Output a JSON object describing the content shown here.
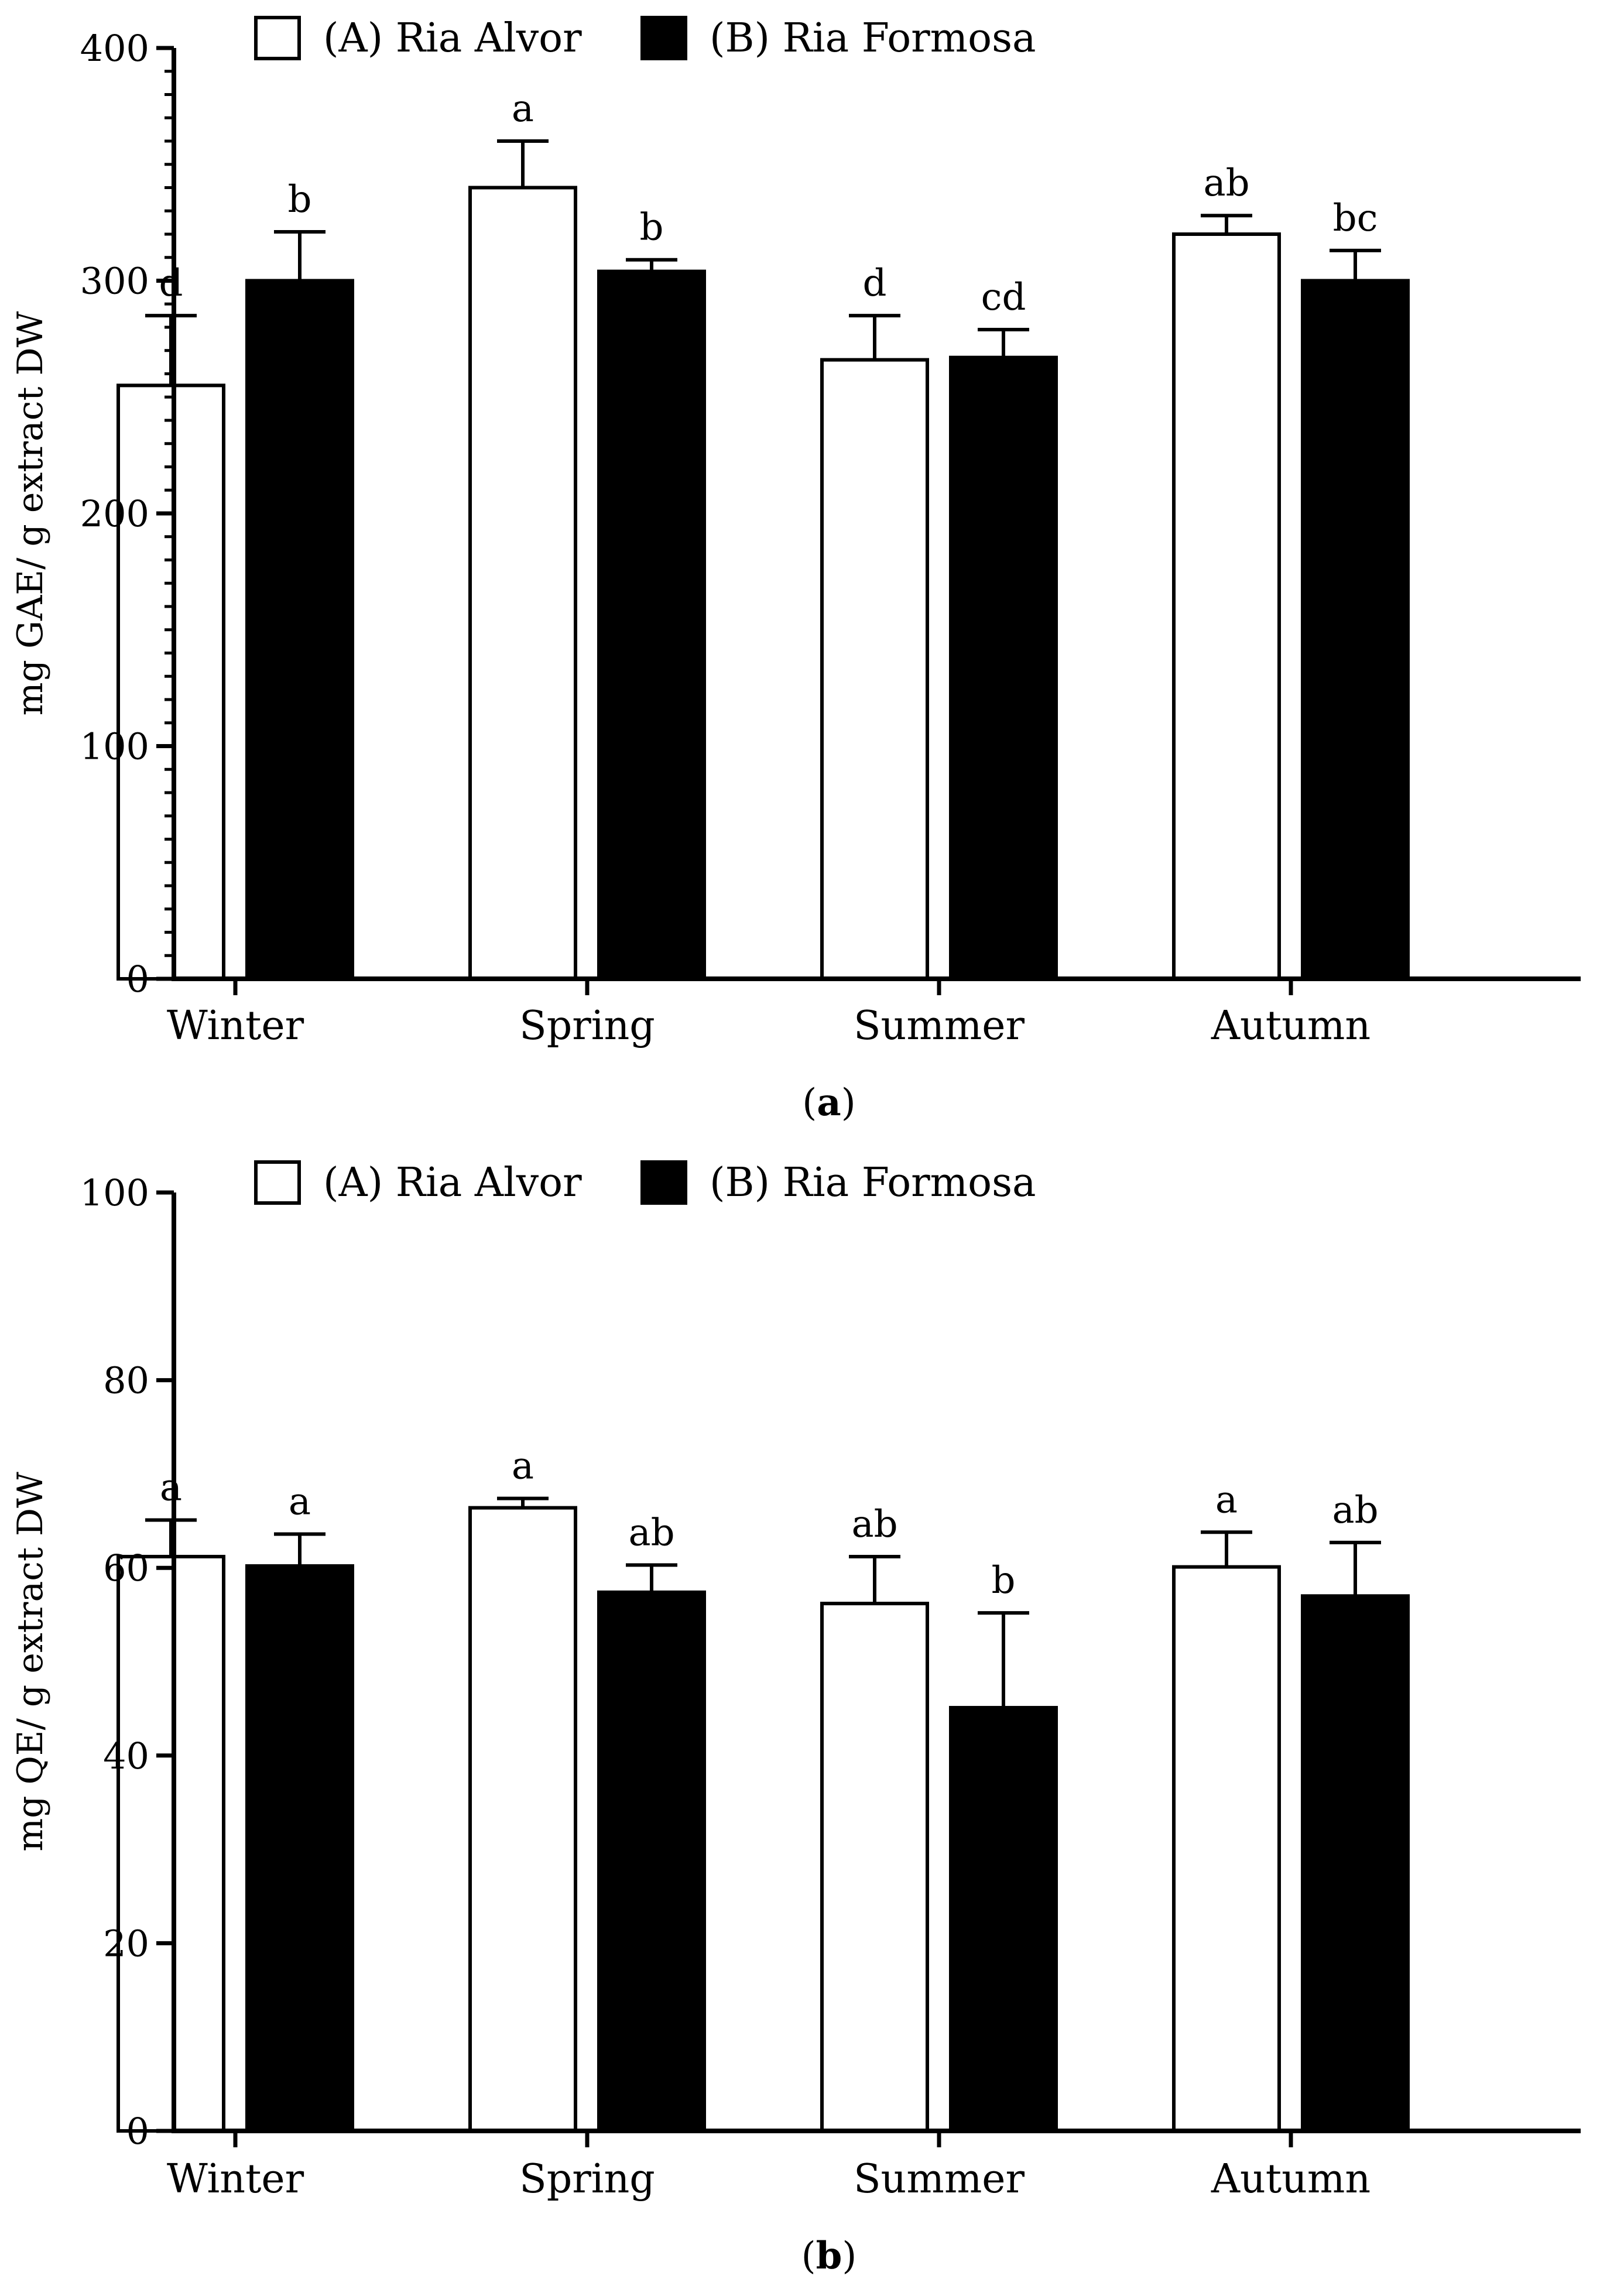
{
  "chart_data": [
    {
      "id": "a",
      "type": "bar",
      "panel_label": "a",
      "ylabel": "mg GAE/ g extract DW",
      "ylim": [
        0,
        400
      ],
      "yticks": [
        0,
        100,
        200,
        300,
        400
      ],
      "categories": [
        "Winter",
        "Spring",
        "Summer",
        "Autumn"
      ],
      "legend": {
        "placement": "top-left"
      },
      "series": [
        {
          "name": "(A) Ria Alvor",
          "color": "#ffffff",
          "values": [
            255,
            340,
            266,
            320
          ],
          "errors": [
            30,
            20,
            19,
            8
          ],
          "letters": [
            "d",
            "a",
            "d",
            "ab"
          ]
        },
        {
          "name": "(B) Ria Formosa",
          "color": "#000000",
          "values": [
            300,
            304,
            267,
            300
          ],
          "errors": [
            21,
            5,
            12,
            13
          ],
          "letters": [
            "b",
            "b",
            "cd",
            "bc"
          ]
        }
      ]
    },
    {
      "id": "b",
      "type": "bar",
      "panel_label": "b",
      "ylabel": "mg QE/ g extract DW",
      "ylim": [
        0,
        100
      ],
      "yticks": [
        0,
        20,
        40,
        60,
        80,
        100
      ],
      "categories": [
        "Winter",
        "Spring",
        "Summer",
        "Autumn"
      ],
      "legend": {
        "placement": "top-left"
      },
      "series": [
        {
          "name": "(A) Ria Alvor",
          "color": "#ffffff",
          "values": [
            61.2,
            66.4,
            56.2,
            60.1
          ],
          "errors": [
            3.9,
            1.0,
            5.0,
            3.7
          ],
          "letters": [
            "a",
            "a",
            "ab",
            "a"
          ]
        },
        {
          "name": "(B) Ria Formosa",
          "color": "#000000",
          "values": [
            60.2,
            57.4,
            45.1,
            57.0
          ],
          "errors": [
            3.4,
            2.9,
            10.1,
            5.7
          ],
          "letters": [
            "a",
            "ab",
            "b",
            "ab"
          ]
        }
      ]
    }
  ]
}
